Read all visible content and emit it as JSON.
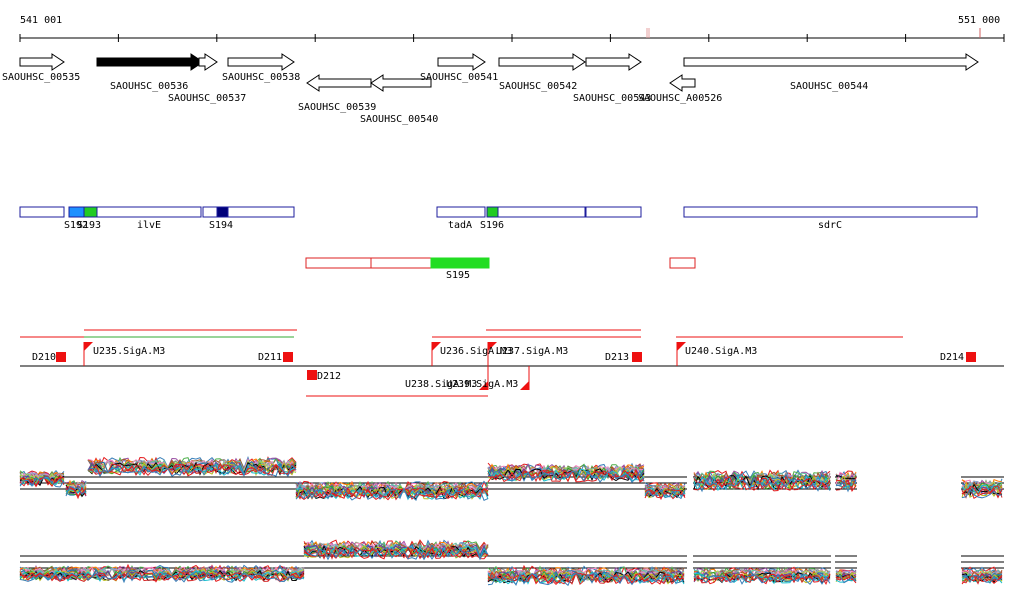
{
  "ruler": {
    "start_label": "541 001",
    "end_label": "551 000"
  },
  "genes": [
    {
      "name": "SAOUHSC_00535",
      "strand": "+",
      "filled": false
    },
    {
      "name": "SAOUHSC_00536",
      "strand": "+",
      "filled": true
    },
    {
      "name": "SAOUHSC_00537",
      "strand": "+",
      "filled": false
    },
    {
      "name": "SAOUHSC_00538",
      "strand": "+",
      "filled": false
    },
    {
      "name": "SAOUHSC_00539",
      "strand": "-",
      "filled": false
    },
    {
      "name": "SAOUHSC_00540",
      "strand": "-",
      "filled": false
    },
    {
      "name": "SAOUHSC_00541",
      "strand": "+",
      "filled": false
    },
    {
      "name": "SAOUHSC_00542",
      "strand": "+",
      "filled": false
    },
    {
      "name": "SAOUHSC_00543",
      "strand": "+",
      "filled": false
    },
    {
      "name": "SAOUHSC_A00526",
      "strand": "-",
      "filled": false
    },
    {
      "name": "SAOUHSC_00544",
      "strand": "+",
      "filled": false
    }
  ],
  "features_plus": {
    "labels": [
      "S192",
      "S193",
      "ilvE",
      "S194",
      "tadA",
      "S196",
      "sdrC"
    ],
    "colors": {
      "outline": "#1c1c9c",
      "light_blue": "#1e90ff",
      "green": "#22cc22",
      "dark_blue": "#00007a"
    }
  },
  "features_minus": {
    "labels": [
      "S195"
    ],
    "colors": {
      "outline": "#dd2222",
      "green": "#22dd22"
    }
  },
  "promoters_plus": {
    "labels": [
      "U235.SigA.M3",
      "U236.SigA.M3",
      "U237.SigA.M3",
      "U240.SigA.M3"
    ],
    "terminators": [
      "D210",
      "D211",
      "D213",
      "D214"
    ]
  },
  "promoters_minus": {
    "labels": [
      "U238.SigA.M3",
      "U239.SigA.M3"
    ],
    "terminators": [
      "D212"
    ]
  },
  "colors": {
    "marker_red": "#ee1111",
    "line_green": "#33aa33",
    "line_black": "#000000"
  },
  "tracks": {
    "count": 2,
    "palette": [
      "#e41a1c",
      "#377eb8",
      "#4daf4a",
      "#984ea3",
      "#ff7f00",
      "#a65628",
      "#f781bf",
      "#999999",
      "#66c2a5",
      "#8da0cb",
      "#e78ac3",
      "#a6d854",
      "#b15928",
      "#1f78b4",
      "#33a02c",
      "#6a3d9a",
      "#000000",
      "#bbbb22",
      "#17becf",
      "#d62728"
    ]
  }
}
